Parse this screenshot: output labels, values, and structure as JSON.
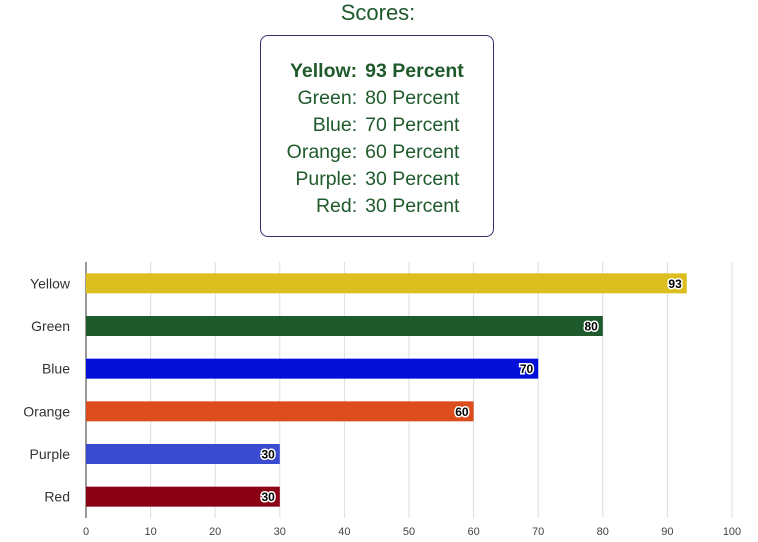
{
  "scores_box": {
    "title": "Scores:",
    "rows": [
      {
        "name": "Yellow:",
        "value": "93 Percent"
      },
      {
        "name": "Green:",
        "value": "80 Percent"
      },
      {
        "name": "Blue:",
        "value": "70 Percent"
      },
      {
        "name": "Orange:",
        "value": "60 Percent"
      },
      {
        "name": "Purple:",
        "value": "30 Percent"
      },
      {
        "name": "Red:",
        "value": "30 Percent"
      }
    ]
  },
  "chart_data": {
    "type": "bar",
    "orientation": "horizontal",
    "categories": [
      "Yellow",
      "Green",
      "Blue",
      "Orange",
      "Purple",
      "Red"
    ],
    "values": [
      93,
      80,
      70,
      60,
      30,
      30
    ],
    "data_labels": [
      "93",
      "80",
      "70",
      "60",
      "30",
      "30"
    ],
    "colors": [
      "#dcbf1f",
      "#1f5a2c",
      "#0410d8",
      "#dc4c1c",
      "#3b4bcf",
      "#8b0014"
    ],
    "xlim": [
      0,
      100
    ],
    "x_ticks": [
      "0",
      "10",
      "20",
      "30",
      "40",
      "50",
      "60",
      "70",
      "80",
      "90",
      "100"
    ],
    "grid": true,
    "title": "",
    "xlabel": "",
    "ylabel": ""
  }
}
